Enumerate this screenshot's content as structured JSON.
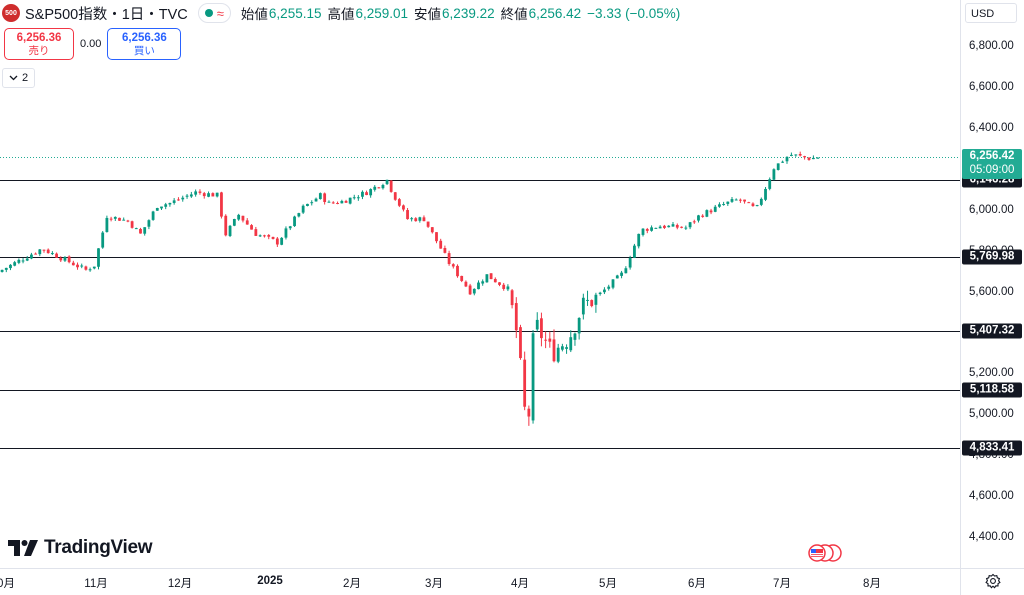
{
  "legend": {
    "logo_text": "500",
    "symbol_title": "S&P500指数・1日・TVC",
    "wave_icon": "≈",
    "open_label": "始値",
    "open_value": "6,255.15",
    "high_label": "高値",
    "high_value": "6,259.01",
    "low_label": "安値",
    "low_value": "6,239.22",
    "close_label": "終値",
    "close_value": "6,256.42",
    "change": "−3.33 (−0.05%)"
  },
  "trade": {
    "sell_price": "6,256.36",
    "sell_label": "売り",
    "spread": "0.00",
    "buy_price": "6,256.36",
    "buy_label": "買い"
  },
  "collapse": {
    "icon": "chevron-down-icon",
    "count": "2"
  },
  "price_axis": {
    "currency": "USD",
    "ticks": [
      "6,800.00",
      "6,600.00",
      "6,400.00",
      "6,000.00",
      "5,800.00",
      "5,600.00",
      "5,200.00",
      "5,000.00",
      "4,800.00",
      "4,600.00",
      "4,400.00"
    ]
  },
  "current_price": {
    "value": "6,256.42",
    "countdown": "05:09:00"
  },
  "levels": [
    {
      "value": "6,146.28",
      "price": 6146.28
    },
    {
      "value": "5,769.98",
      "price": 5769.98
    },
    {
      "value": "5,407.32",
      "price": 5407.32
    },
    {
      "value": "5,118.58",
      "price": 5118.58
    },
    {
      "value": "4,833.41",
      "price": 4833.41
    }
  ],
  "time_axis": {
    "labels": [
      "0月",
      "11月",
      "12月",
      "2025",
      "2月",
      "3月",
      "4月",
      "5月",
      "6月",
      "7月",
      "8月"
    ]
  },
  "watermark": {
    "text": "TradingView"
  },
  "colors": {
    "up": "#089981",
    "down": "#f23645",
    "tag": "#131722",
    "last": "#22ab94"
  },
  "chart_data": {
    "type": "candlestick",
    "series_name": "S&P500指数",
    "interval": "1日",
    "ylim": [
      4300,
      6950
    ],
    "last_price": 6256.42,
    "monthly_closes": [
      {
        "month": "2024-10",
        "close": 5705
      },
      {
        "month": "2024-11",
        "close": 6032
      },
      {
        "month": "2024-12",
        "close": 5882
      },
      {
        "month": "2025-01",
        "close": 6040
      },
      {
        "month": "2025-02",
        "close": 5955
      },
      {
        "month": "2025-03",
        "close": 5612
      },
      {
        "month": "2025-04",
        "close": 5569
      },
      {
        "month": "2025-05",
        "close": 5912
      },
      {
        "month": "2025-06",
        "close": 6205
      },
      {
        "month": "2025-07",
        "close": 6256
      }
    ],
    "notable": {
      "april_low": 4835,
      "february_high": 6147,
      "july_high": 6290
    }
  }
}
